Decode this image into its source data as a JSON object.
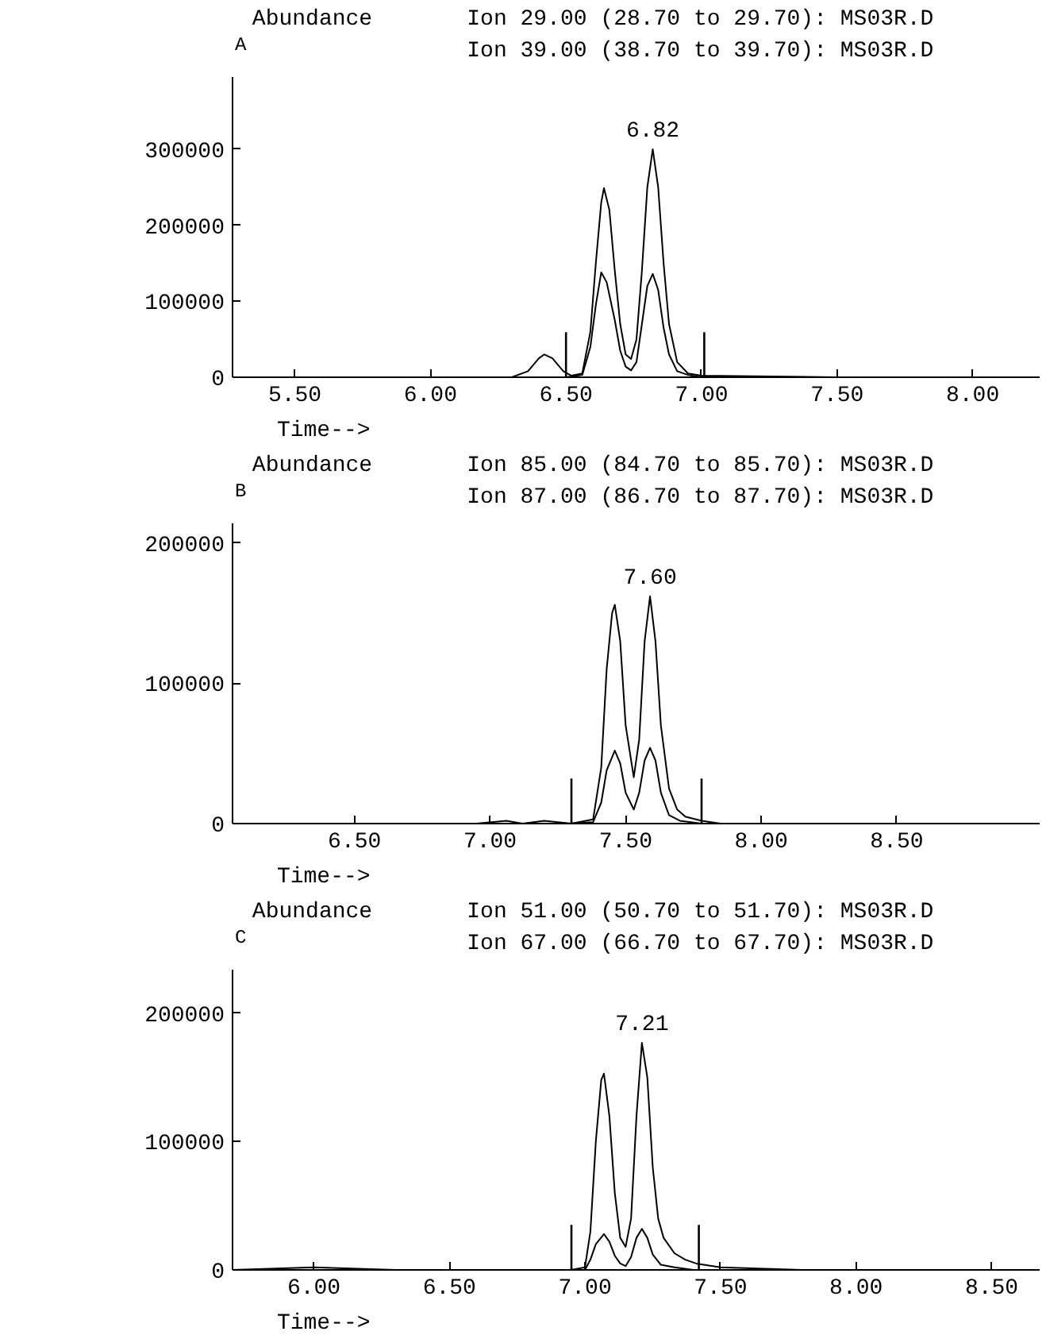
{
  "chart_data": [
    {
      "type": "line",
      "title": "A",
      "xlabel": "Time-->",
      "ylabel": "Abundance",
      "grid": false,
      "annotations": [
        "Ion  29.00 (28.70 to 29.70): MS03R.D",
        "Ion  39.00 (38.70 to 39.70): MS03R.D",
        "6.82"
      ],
      "xlim": [
        5.27,
        8.25
      ],
      "ylim": [
        0,
        395000
      ],
      "xticks": [
        {
          "value": 5.5,
          "label": "5.50"
        },
        {
          "value": 6.0,
          "label": "6.00"
        },
        {
          "value": 6.5,
          "label": "6.50"
        },
        {
          "value": 7.0,
          "label": "7.00"
        },
        {
          "value": 7.5,
          "label": "7.50"
        },
        {
          "value": 8.0,
          "label": "8.00"
        }
      ],
      "yticks": [
        0,
        100000,
        200000,
        300000
      ],
      "ref_lines": [
        {
          "axis": "x",
          "value": 6.5
        },
        {
          "axis": "x",
          "value": 7.01
        }
      ],
      "series": [
        {
          "color": "#000000",
          "x": [
            5.27,
            6.0,
            6.3,
            6.36,
            6.4,
            6.42,
            6.45,
            6.49,
            6.52,
            6.56,
            6.59,
            6.61,
            6.63,
            6.64,
            6.66,
            6.68,
            6.7,
            6.72,
            6.74,
            6.76,
            6.78,
            6.8,
            6.82,
            6.84,
            6.86,
            6.88,
            6.91,
            6.95,
            7.0,
            7.5,
            8.25
          ],
          "values": [
            0,
            0,
            0,
            8000,
            25000,
            30000,
            25000,
            8000,
            2000,
            5000,
            60000,
            150000,
            230000,
            249000,
            220000,
            140000,
            70000,
            30000,
            24000,
            50000,
            140000,
            250000,
            300000,
            250000,
            150000,
            70000,
            20000,
            5000,
            2000,
            0,
            0
          ]
        },
        {
          "color": "#000000",
          "x": [
            5.27,
            6.5,
            6.56,
            6.59,
            6.61,
            6.63,
            6.65,
            6.68,
            6.7,
            6.72,
            6.74,
            6.76,
            6.78,
            6.8,
            6.82,
            6.84,
            6.86,
            6.88,
            6.91,
            6.95,
            7.0,
            8.25
          ],
          "values": [
            0,
            0,
            3000,
            40000,
            95000,
            138000,
            125000,
            75000,
            35000,
            14000,
            9000,
            20000,
            70000,
            120000,
            136000,
            115000,
            65000,
            30000,
            8000,
            3000,
            0,
            0
          ]
        }
      ]
    },
    {
      "type": "line",
      "title": "B",
      "xlabel": "Time-->",
      "ylabel": "Abundance",
      "grid": false,
      "annotations": [
        "Ion  85.00 (84.70 to 85.70): MS03R.D",
        "Ion  87.00 (86.70 to 87.70): MS03R.D",
        "7.60"
      ],
      "xlim": [
        6.05,
        9.03
      ],
      "ylim": [
        0,
        214000
      ],
      "xticks": [
        {
          "value": 6.5,
          "label": "6.50"
        },
        {
          "value": 7.0,
          "label": "7.00"
        },
        {
          "value": 7.5,
          "label": "7.50"
        },
        {
          "value": 8.0,
          "label": "8.00"
        },
        {
          "value": 8.5,
          "label": "8.50"
        }
      ],
      "yticks": [
        0,
        100000,
        200000
      ],
      "ref_lines": [
        {
          "axis": "x",
          "value": 7.3
        },
        {
          "axis": "x",
          "value": 7.78
        }
      ],
      "series": [
        {
          "color": "#000000",
          "x": [
            6.05,
            6.95,
            7.06,
            7.12,
            7.2,
            7.3,
            7.38,
            7.41,
            7.43,
            7.45,
            7.46,
            7.48,
            7.5,
            7.53,
            7.55,
            7.57,
            7.59,
            7.61,
            7.63,
            7.66,
            7.69,
            7.72,
            7.78,
            7.85,
            9.03
          ],
          "values": [
            0,
            0,
            2000,
            0,
            2000,
            0,
            3000,
            40000,
            110000,
            150000,
            156000,
            130000,
            70000,
            33000,
            60000,
            130000,
            162000,
            130000,
            70000,
            25000,
            10000,
            5000,
            2000,
            0,
            0
          ]
        },
        {
          "color": "#000000",
          "x": [
            6.05,
            7.3,
            7.38,
            7.41,
            7.43,
            7.46,
            7.48,
            7.5,
            7.53,
            7.55,
            7.57,
            7.59,
            7.61,
            7.63,
            7.66,
            7.7,
            7.78,
            9.03
          ],
          "values": [
            0,
            0,
            1000,
            15000,
            38000,
            52000,
            43000,
            22000,
            10000,
            22000,
            45000,
            54000,
            45000,
            22000,
            6000,
            2000,
            0,
            0
          ]
        }
      ]
    },
    {
      "type": "line",
      "title": "C",
      "xlabel": "Time-->",
      "ylabel": "Abundance",
      "grid": false,
      "annotations": [
        "Ion  51.00 (50.70 to 51.70): MS03R.D",
        "Ion  67.00 (66.70 to 67.70): MS03R.D",
        "7.21"
      ],
      "xlim": [
        5.7,
        8.68
      ],
      "ylim": [
        0,
        234000
      ],
      "xticks": [
        {
          "value": 6.0,
          "label": "6.00"
        },
        {
          "value": 6.5,
          "label": "6.50"
        },
        {
          "value": 7.0,
          "label": "7.00"
        },
        {
          "value": 7.5,
          "label": "7.50"
        },
        {
          "value": 8.0,
          "label": "8.00"
        },
        {
          "value": 8.5,
          "label": "8.50"
        }
      ],
      "yticks": [
        0,
        100000,
        200000
      ],
      "ref_lines": [
        {
          "axis": "x",
          "value": 6.95
        },
        {
          "axis": "x",
          "value": 7.42
        }
      ],
      "series": [
        {
          "color": "#000000",
          "x": [
            5.7,
            6.0,
            6.3,
            6.95,
            7.0,
            7.02,
            7.04,
            7.06,
            7.07,
            7.09,
            7.11,
            7.13,
            7.15,
            7.17,
            7.19,
            7.21,
            7.23,
            7.25,
            7.27,
            7.29,
            7.33,
            7.37,
            7.41,
            7.5,
            7.8,
            8.68
          ],
          "values": [
            0,
            2000,
            0,
            0,
            2000,
            30000,
            100000,
            148000,
            153000,
            120000,
            60000,
            25000,
            18000,
            40000,
            120000,
            177000,
            150000,
            80000,
            40000,
            25000,
            13000,
            8000,
            5000,
            2000,
            0,
            0
          ]
        },
        {
          "color": "#000000",
          "x": [
            5.7,
            6.95,
            7.0,
            7.02,
            7.04,
            7.07,
            7.09,
            7.11,
            7.13,
            7.15,
            7.17,
            7.19,
            7.21,
            7.23,
            7.25,
            7.28,
            7.33,
            7.4,
            8.68
          ],
          "values": [
            0,
            0,
            0,
            8000,
            20000,
            28000,
            22000,
            11000,
            5000,
            3000,
            10000,
            25000,
            32000,
            25000,
            12000,
            4000,
            2000,
            0,
            0
          ]
        }
      ]
    }
  ]
}
